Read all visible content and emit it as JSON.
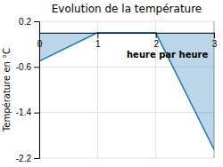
{
  "chart_data": {
    "type": "area",
    "title": "Evolution de la température",
    "xlabel": "heure par heure",
    "ylabel": "Température en °C",
    "x": [
      0,
      1,
      2,
      3
    ],
    "values": [
      -0.5,
      0.0,
      0.0,
      -2.05
    ],
    "xlim": [
      0,
      3
    ],
    "ylim": [
      -2.2,
      0.2
    ],
    "xticks": [
      0,
      1,
      2,
      3
    ],
    "yticks": [
      0.2,
      -0.6,
      -1.4,
      -2.2
    ],
    "grid": true
  }
}
